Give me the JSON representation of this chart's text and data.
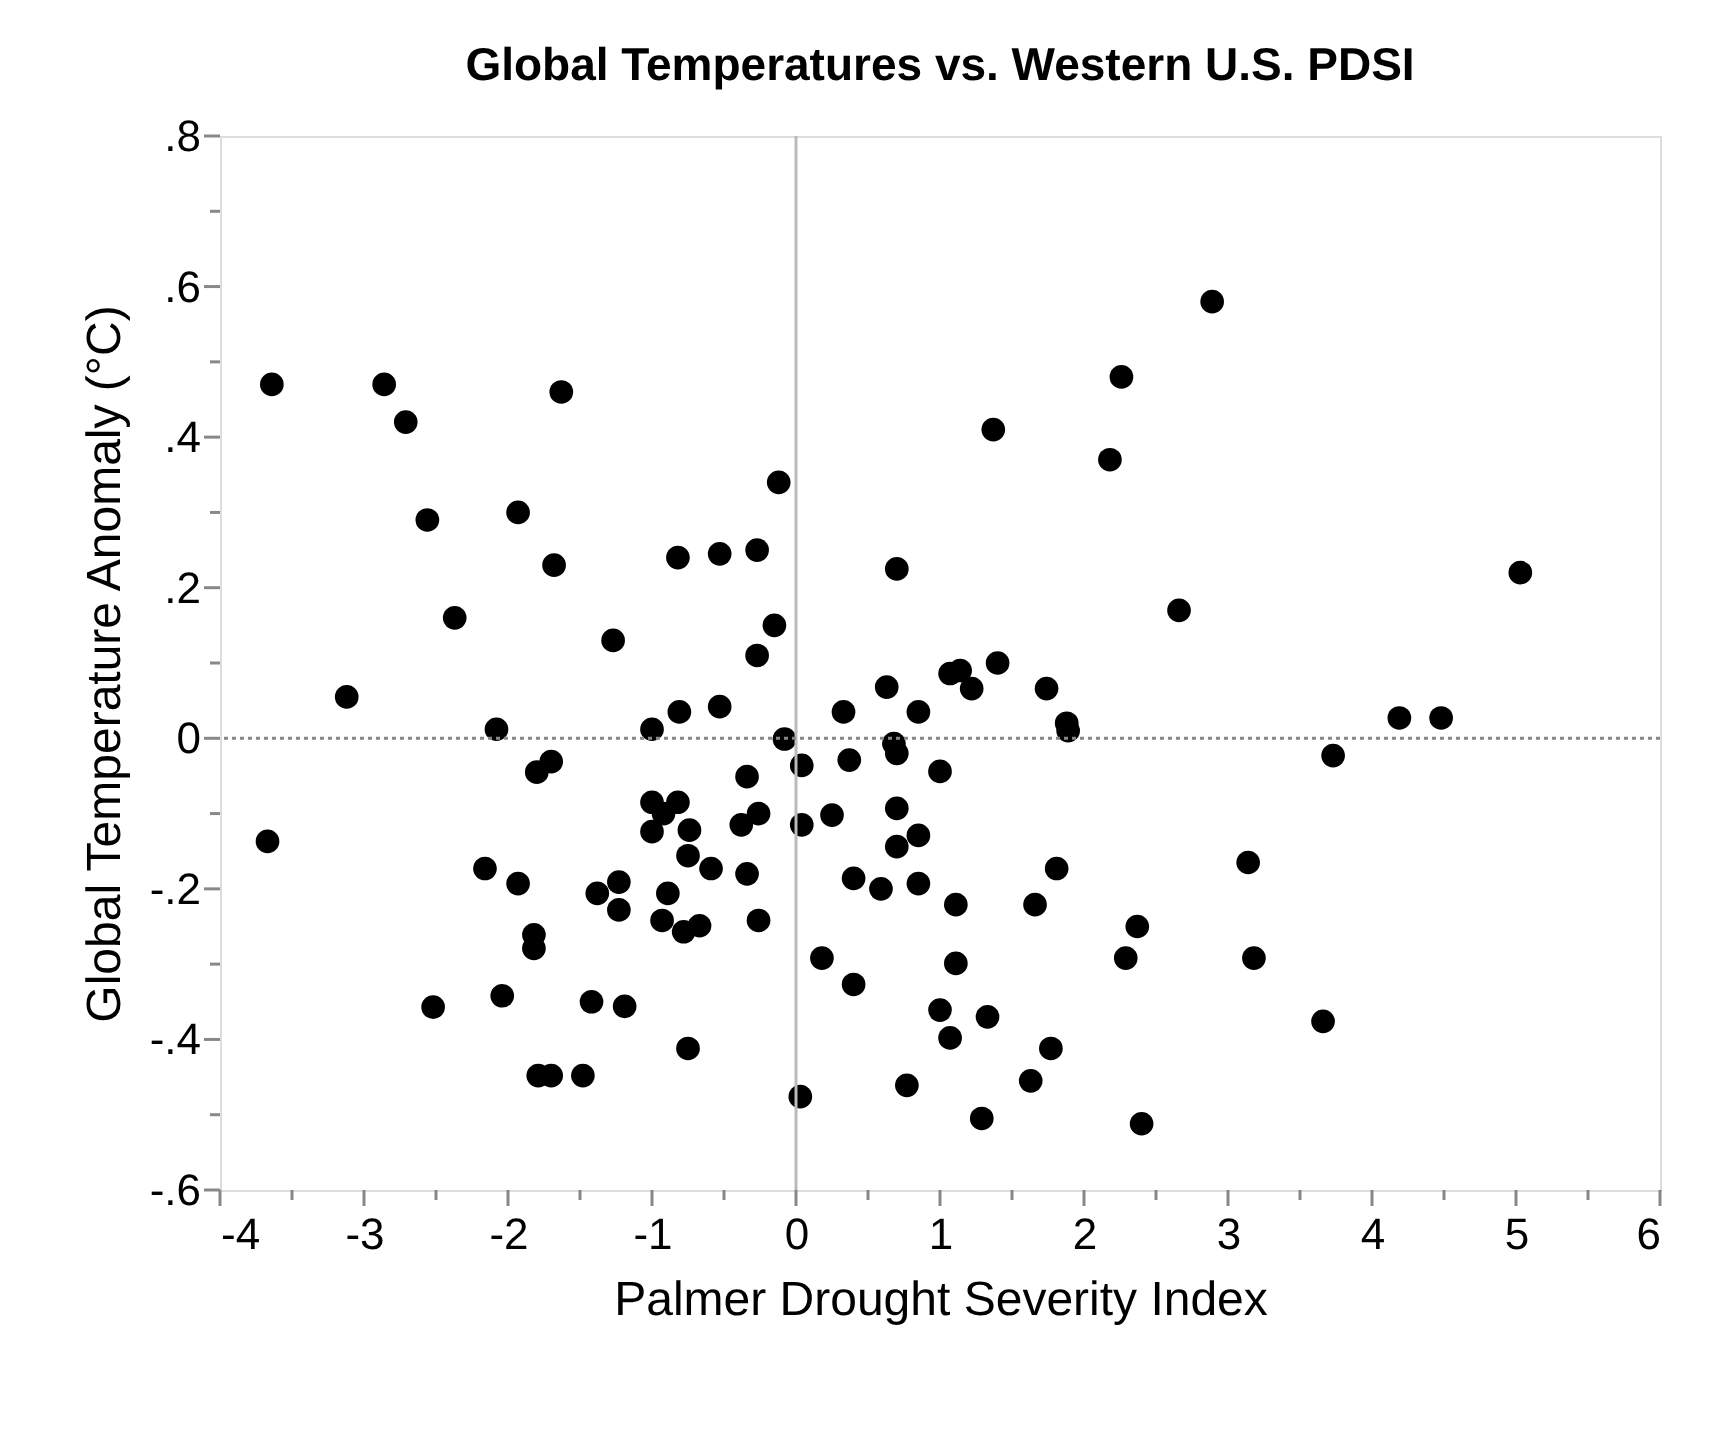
{
  "chart_data": {
    "type": "scatter",
    "title": "Global Temperatures vs. Western U.S. PDSI",
    "xlabel": "Palmer Drought Severity Index",
    "ylabel": "Global Temperature Anomaly (°C)",
    "series": [
      {
        "color": "#000000",
        "x": [
          -3.64,
          -2.86,
          -2.71,
          -1.63,
          -0.12,
          -2.56,
          -1.93,
          -1.68,
          -0.82,
          -0.53,
          -0.27,
          0.7,
          -2.37,
          -0.15,
          -1.27,
          -0.27,
          2.89,
          2.26,
          1.37,
          2.18,
          5.03,
          2.66,
          1.4,
          1.14,
          1.07,
          1.22,
          1.74,
          1.88,
          1.89,
          4.19,
          4.48,
          3.73,
          1.0,
          3.14,
          1.81,
          1.11,
          1.66,
          2.37,
          2.29,
          3.18,
          1.11,
          1.0,
          1.33,
          1.07,
          3.66,
          1.77,
          1.63,
          1.29,
          2.4,
          -3.12,
          -2.08,
          -1.0,
          -0.81,
          -0.53,
          -0.08,
          0.33,
          0.63,
          0.85,
          0.68,
          0.7,
          0.04,
          0.37,
          -0.34,
          -1.8,
          -1.7,
          -3.67,
          -1.0,
          -0.82,
          -0.92,
          -1.0,
          -0.74,
          -0.38,
          -0.26,
          0.04,
          0.25,
          0.7,
          0.7,
          0.85,
          -0.75,
          -0.59,
          -0.34,
          0.4,
          0.59,
          0.85,
          -2.16,
          -1.93,
          -1.38,
          -1.23,
          -1.23,
          -0.89,
          -0.93,
          -0.78,
          -0.67,
          -0.26,
          -1.82,
          -1.82,
          0.18,
          0.4,
          -2.52,
          -2.04,
          -1.42,
          -1.19,
          -0.75,
          -1.79,
          -1.7,
          -1.48,
          0.03,
          0.77
        ],
        "values": [
          0.47,
          0.47,
          0.42,
          0.46,
          0.34,
          0.29,
          0.3,
          0.23,
          0.24,
          0.245,
          0.25,
          0.225,
          0.16,
          0.15,
          0.13,
          0.11,
          0.58,
          0.48,
          0.41,
          0.37,
          0.22,
          0.17,
          0.1,
          0.09,
          0.086,
          0.066,
          0.066,
          0.02,
          0.01,
          0.027,
          0.027,
          -0.023,
          -0.044,
          -0.165,
          -0.173,
          -0.221,
          -0.221,
          -0.25,
          -0.292,
          -0.292,
          -0.299,
          -0.361,
          -0.37,
          -0.398,
          -0.376,
          -0.412,
          -0.455,
          -0.505,
          -0.512,
          0.055,
          0.012,
          0.012,
          0.035,
          0.042,
          -0.001,
          0.035,
          0.068,
          0.035,
          -0.007,
          -0.02,
          -0.036,
          -0.029,
          -0.051,
          -0.045,
          -0.031,
          -0.137,
          -0.085,
          -0.085,
          -0.1,
          -0.124,
          -0.122,
          -0.115,
          -0.1,
          -0.115,
          -0.102,
          -0.093,
          -0.144,
          -0.129,
          -0.156,
          -0.173,
          -0.18,
          -0.186,
          -0.2,
          -0.193,
          -0.173,
          -0.193,
          -0.206,
          -0.191,
          -0.228,
          -0.206,
          -0.242,
          -0.257,
          -0.249,
          -0.242,
          -0.261,
          -0.279,
          -0.292,
          -0.327,
          -0.357,
          -0.342,
          -0.35,
          -0.356,
          -0.412,
          -0.448,
          -0.448,
          -0.448,
          -0.476,
          -0.461
        ]
      }
    ],
    "xlim": [
      -4,
      6
    ],
    "xticks": [
      -4,
      {
        "value": -3.5,
        "label": null
      },
      -3,
      {
        "value": -2.5,
        "label": null
      },
      -2,
      {
        "value": -1.5,
        "label": null
      },
      -1,
      {
        "value": -0.5,
        "label": null
      },
      0,
      {
        "value": 0.5,
        "label": null
      },
      1,
      {
        "value": 1.5,
        "label": null
      },
      2,
      {
        "value": 2.5,
        "label": null
      },
      3,
      {
        "value": 3.5,
        "label": null
      },
      4,
      {
        "value": 4.5,
        "label": null
      },
      5,
      {
        "value": 5.5,
        "label": null
      },
      6
    ],
    "ylim": [
      -0.6,
      0.8
    ],
    "yticks": [
      {
        "value": -0.6,
        "label": "-.6"
      },
      {
        "value": -0.5,
        "label": null
      },
      {
        "value": -0.4,
        "label": "-.4"
      },
      {
        "value": -0.3,
        "label": null
      },
      {
        "value": -0.2,
        "label": "-.2"
      },
      {
        "value": -0.1,
        "label": null
      },
      0,
      {
        "value": 0.1,
        "label": null
      },
      {
        "value": 0.2,
        "label": ".2"
      },
      {
        "value": 0.3,
        "label": null
      },
      {
        "value": 0.4,
        "label": ".4"
      },
      {
        "value": 0.5,
        "label": null
      },
      {
        "value": 0.6,
        "label": ".6"
      },
      {
        "value": 0.7,
        "label": null
      },
      {
        "value": 0.8,
        "label": ".8"
      }
    ],
    "ref_lines": [
      {
        "axis": "x",
        "value": 0,
        "color": "#bbbbbb",
        "line_style": "solid"
      },
      {
        "axis": "y",
        "value": 0,
        "color": "#888888",
        "line_style": "dotted"
      }
    ],
    "grid": false,
    "legend": false,
    "marker": "circle"
  }
}
